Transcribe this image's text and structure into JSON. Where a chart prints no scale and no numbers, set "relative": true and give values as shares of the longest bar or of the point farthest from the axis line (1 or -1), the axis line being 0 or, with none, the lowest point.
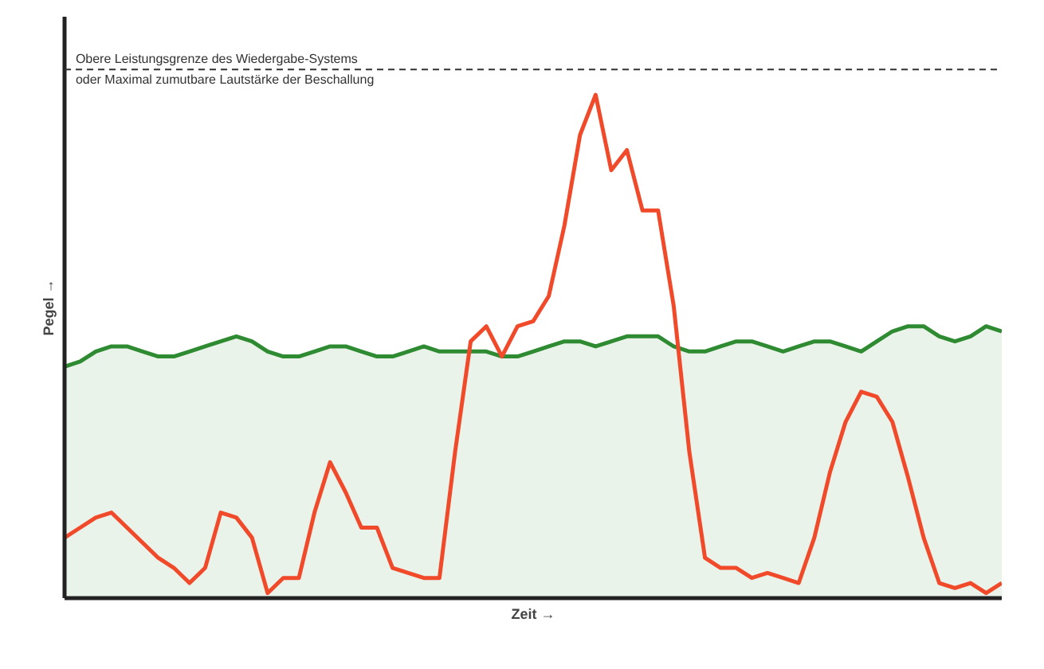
{
  "chart_data": {
    "type": "line",
    "relative": true,
    "xlabel": "Zeit →",
    "ylabel": "Pegel →",
    "categories": [
      null,
      null,
      null,
      null,
      null,
      null,
      null,
      null,
      null,
      null,
      null,
      null,
      null,
      null,
      null,
      null,
      null,
      null,
      null,
      null,
      null,
      null,
      null,
      null,
      null,
      null,
      null,
      null,
      null,
      null,
      null,
      null,
      null,
      null,
      null,
      null,
      null,
      null,
      null,
      null,
      null,
      null,
      null,
      null,
      null,
      null,
      null,
      null,
      null,
      null,
      null,
      null,
      null,
      null,
      null,
      null,
      null,
      null,
      null,
      null,
      null
    ],
    "series": [
      {
        "type": "area",
        "color": "#2e8b32",
        "values": [
          0.46,
          0.47,
          0.49,
          0.5,
          0.5,
          0.49,
          0.48,
          0.48,
          0.49,
          0.5,
          0.51,
          0.52,
          0.51,
          0.49,
          0.48,
          0.48,
          0.49,
          0.5,
          0.5,
          0.49,
          0.48,
          0.48,
          0.49,
          0.5,
          0.49,
          0.49,
          0.49,
          0.49,
          0.48,
          0.48,
          0.49,
          0.5,
          0.51,
          0.51,
          0.5,
          0.51,
          0.52,
          0.52,
          0.52,
          0.5,
          0.49,
          0.49,
          0.5,
          0.51,
          0.51,
          0.5,
          0.49,
          0.5,
          0.51,
          0.51,
          0.5,
          0.49,
          0.51,
          0.53,
          0.54,
          0.54,
          0.52,
          0.51,
          0.52,
          0.54,
          0.53
        ]
      },
      {
        "color": "#f04a2a",
        "values": [
          0.12,
          0.14,
          0.16,
          0.17,
          0.14,
          0.11,
          0.08,
          0.06,
          0.03,
          0.06,
          0.17,
          0.16,
          0.12,
          0.01,
          0.04,
          0.04,
          0.17,
          0.27,
          0.21,
          0.14,
          0.14,
          0.06,
          0.05,
          0.04,
          0.04,
          0.29,
          0.51,
          0.54,
          0.48,
          0.54,
          0.55,
          0.6,
          0.74,
          0.92,
          1.0,
          0.85,
          0.89,
          0.77,
          0.77,
          0.58,
          0.29,
          0.08,
          0.06,
          0.06,
          0.04,
          0.05,
          0.04,
          0.03,
          0.12,
          0.25,
          0.35,
          0.41,
          0.4,
          0.35,
          0.24,
          0.12,
          0.03,
          0.02,
          0.03,
          0.01,
          0.03
        ]
      }
    ],
    "ref_lines": [
      {
        "axis": "y",
        "value": 1.05,
        "label": "Obere Leistungsgrenze des Wiedergabe-Systems\noder Maximal zumutbare Lautstärke der Beschallung",
        "color": "#333333",
        "line_style": "dashed"
      }
    ]
  }
}
